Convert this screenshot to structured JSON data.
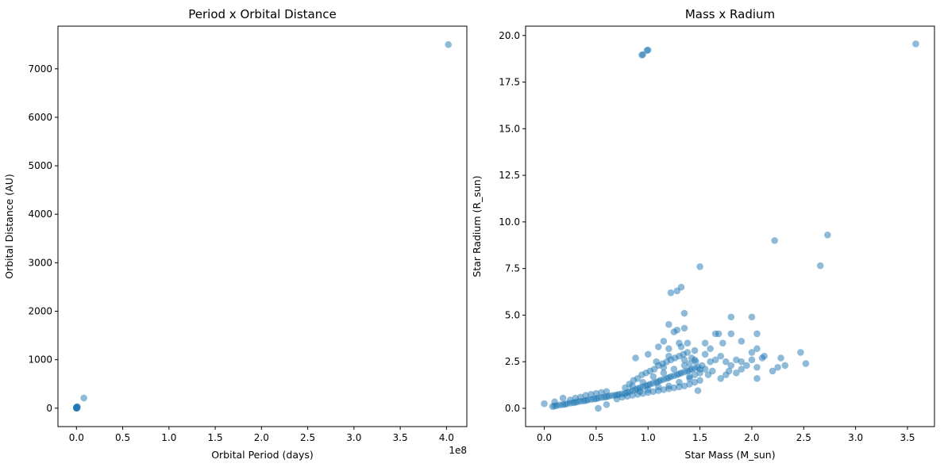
{
  "chart_data": [
    {
      "type": "scatter",
      "title": "Period x Orbital Distance",
      "xlabel": "Orbital Period (days)",
      "ylabel": "Orbital Distance (AU)",
      "x_offset_label": "1e8",
      "xlim": [
        -0.2,
        4.22
      ],
      "ylim": [
        -380,
        7880
      ],
      "xticks": [
        0.0,
        0.5,
        1.0,
        1.5,
        2.0,
        2.5,
        3.0,
        3.5,
        4.0
      ],
      "xtick_labels": [
        "0.0",
        "0.5",
        "1.0",
        "1.5",
        "2.0",
        "2.5",
        "3.0",
        "3.5",
        "4.0"
      ],
      "yticks": [
        0,
        1000,
        2000,
        3000,
        4000,
        5000,
        6000,
        7000
      ],
      "ytick_labels": [
        "0",
        "1000",
        "2000",
        "3000",
        "4000",
        "5000",
        "6000",
        "7000"
      ],
      "color": "#1f77b4",
      "alpha": 0.5,
      "grid": false,
      "points": [
        [
          0.0,
          0.0
        ],
        [
          0.002,
          2
        ],
        [
          0.004,
          5
        ],
        [
          0.006,
          10
        ],
        [
          0.0,
          15
        ],
        [
          0.003,
          20
        ],
        [
          0.008,
          30
        ],
        [
          0.001,
          3
        ],
        [
          0.005,
          8
        ],
        [
          0.0,
          12
        ],
        [
          0.007,
          25
        ],
        [
          0.08,
          210
        ],
        [
          4.02,
          7500
        ]
      ]
    },
    {
      "type": "scatter",
      "title": "Mass x Radium",
      "xlabel": "Star Mass (M_sun)",
      "ylabel": "Star Radium (R_sun)",
      "xlim": [
        -0.18,
        3.76
      ],
      "ylim": [
        -0.98,
        20.5
      ],
      "xticks": [
        0.0,
        0.5,
        1.0,
        1.5,
        2.0,
        2.5,
        3.0,
        3.5
      ],
      "xtick_labels": [
        "0.0",
        "0.5",
        "1.0",
        "1.5",
        "2.0",
        "2.5",
        "3.0",
        "3.5"
      ],
      "yticks": [
        0.0,
        2.5,
        5.0,
        7.5,
        10.0,
        12.5,
        15.0,
        17.5,
        20.0
      ],
      "ytick_labels": [
        "0.0",
        "2.5",
        "5.0",
        "7.5",
        "10.0",
        "12.5",
        "15.0",
        "17.5",
        "20.0"
      ],
      "color": "#1f77b4",
      "alpha": 0.5,
      "grid": false,
      "points": [
        [
          0.0,
          0.25
        ],
        [
          0.08,
          0.1
        ],
        [
          0.1,
          0.12
        ],
        [
          0.12,
          0.15
        ],
        [
          0.15,
          0.18
        ],
        [
          0.18,
          0.2
        ],
        [
          0.2,
          0.22
        ],
        [
          0.22,
          0.25
        ],
        [
          0.25,
          0.28
        ],
        [
          0.28,
          0.3
        ],
        [
          0.3,
          0.32
        ],
        [
          0.32,
          0.35
        ],
        [
          0.35,
          0.38
        ],
        [
          0.38,
          0.4
        ],
        [
          0.4,
          0.42
        ],
        [
          0.42,
          0.45
        ],
        [
          0.45,
          0.48
        ],
        [
          0.48,
          0.5
        ],
        [
          0.5,
          0.52
        ],
        [
          0.52,
          0.55
        ],
        [
          0.55,
          0.58
        ],
        [
          0.58,
          0.6
        ],
        [
          0.6,
          0.62
        ],
        [
          0.62,
          0.65
        ],
        [
          0.65,
          0.68
        ],
        [
          0.68,
          0.7
        ],
        [
          0.7,
          0.72
        ],
        [
          0.72,
          0.75
        ],
        [
          0.75,
          0.78
        ],
        [
          0.78,
          0.8
        ],
        [
          0.8,
          0.85
        ],
        [
          0.82,
          0.9
        ],
        [
          0.85,
          0.95
        ],
        [
          0.88,
          1.0
        ],
        [
          0.9,
          1.05
        ],
        [
          0.92,
          1.1
        ],
        [
          0.95,
          1.15
        ],
        [
          0.98,
          1.2
        ],
        [
          1.0,
          1.25
        ],
        [
          1.02,
          1.3
        ],
        [
          1.05,
          1.35
        ],
        [
          1.08,
          1.4
        ],
        [
          1.1,
          1.45
        ],
        [
          1.12,
          1.5
        ],
        [
          1.15,
          1.55
        ],
        [
          1.18,
          1.6
        ],
        [
          1.2,
          1.65
        ],
        [
          1.22,
          1.7
        ],
        [
          1.25,
          1.75
        ],
        [
          1.28,
          1.8
        ],
        [
          1.3,
          1.85
        ],
        [
          1.32,
          1.9
        ],
        [
          1.35,
          1.95
        ],
        [
          1.38,
          2.0
        ],
        [
          1.4,
          2.05
        ],
        [
          1.42,
          2.1
        ],
        [
          1.45,
          2.15
        ],
        [
          1.48,
          2.2
        ],
        [
          0.1,
          0.35
        ],
        [
          0.18,
          0.55
        ],
        [
          0.25,
          0.45
        ],
        [
          0.3,
          0.55
        ],
        [
          0.35,
          0.6
        ],
        [
          0.4,
          0.7
        ],
        [
          0.45,
          0.75
        ],
        [
          0.5,
          0.8
        ],
        [
          0.55,
          0.85
        ],
        [
          0.6,
          0.9
        ],
        [
          0.52,
          0.0
        ],
        [
          0.6,
          0.2
        ],
        [
          0.7,
          0.5
        ],
        [
          0.75,
          0.6
        ],
        [
          0.8,
          0.65
        ],
        [
          0.85,
          0.7
        ],
        [
          0.9,
          0.75
        ],
        [
          0.95,
          0.8
        ],
        [
          1.0,
          0.85
        ],
        [
          1.05,
          0.9
        ],
        [
          1.1,
          0.95
        ],
        [
          1.15,
          1.0
        ],
        [
          1.2,
          1.05
        ],
        [
          1.25,
          1.1
        ],
        [
          1.3,
          1.15
        ],
        [
          1.35,
          1.2
        ],
        [
          1.4,
          1.3
        ],
        [
          1.45,
          1.4
        ],
        [
          1.5,
          1.5
        ],
        [
          1.48,
          0.95
        ],
        [
          0.78,
          1.1
        ],
        [
          0.82,
          1.3
        ],
        [
          0.86,
          1.5
        ],
        [
          0.9,
          1.6
        ],
        [
          0.94,
          1.8
        ],
        [
          0.98,
          1.9
        ],
        [
          1.02,
          2.0
        ],
        [
          1.06,
          2.1
        ],
        [
          1.1,
          2.3
        ],
        [
          1.14,
          2.4
        ],
        [
          1.18,
          2.5
        ],
        [
          1.22,
          2.6
        ],
        [
          1.26,
          2.7
        ],
        [
          1.3,
          2.8
        ],
        [
          1.34,
          2.9
        ],
        [
          1.38,
          3.0
        ],
        [
          1.42,
          2.7
        ],
        [
          1.46,
          2.5
        ],
        [
          0.88,
          2.7
        ],
        [
          1.0,
          2.9
        ],
        [
          1.1,
          3.3
        ],
        [
          1.15,
          3.6
        ],
        [
          1.2,
          3.2
        ],
        [
          1.25,
          4.1
        ],
        [
          1.28,
          4.2
        ],
        [
          1.32,
          3.3
        ],
        [
          1.35,
          4.3
        ],
        [
          1.3,
          3.5
        ],
        [
          1.38,
          3.5
        ],
        [
          1.45,
          3.1
        ],
        [
          1.55,
          2.9
        ],
        [
          1.6,
          2.5
        ],
        [
          1.65,
          2.6
        ],
        [
          1.7,
          2.8
        ],
        [
          1.75,
          2.5
        ],
        [
          1.8,
          2.3
        ],
        [
          1.85,
          2.6
        ],
        [
          1.9,
          2.5
        ],
        [
          1.95,
          2.3
        ],
        [
          2.0,
          2.6
        ],
        [
          2.05,
          2.2
        ],
        [
          2.1,
          2.7
        ],
        [
          1.55,
          3.5
        ],
        [
          1.6,
          3.2
        ],
        [
          1.65,
          4.0
        ],
        [
          1.68,
          4.0
        ],
        [
          1.72,
          3.5
        ],
        [
          1.8,
          4.9
        ],
        [
          1.8,
          4.0
        ],
        [
          1.9,
          3.6
        ],
        [
          2.0,
          3.0
        ],
        [
          2.05,
          3.2
        ],
        [
          2.05,
          4.0
        ],
        [
          2.0,
          4.9
        ],
        [
          1.58,
          1.8
        ],
        [
          1.62,
          2.0
        ],
        [
          1.7,
          1.6
        ],
        [
          1.75,
          1.8
        ],
        [
          1.78,
          2.0
        ],
        [
          1.85,
          1.9
        ],
        [
          1.9,
          2.1
        ],
        [
          2.05,
          1.6
        ],
        [
          2.12,
          2.8
        ],
        [
          2.2,
          2.0
        ],
        [
          2.25,
          2.2
        ],
        [
          2.28,
          2.7
        ],
        [
          2.32,
          2.3
        ],
        [
          2.47,
          3.0
        ],
        [
          2.52,
          2.4
        ],
        [
          2.22,
          9.0
        ],
        [
          2.66,
          7.65
        ],
        [
          2.73,
          9.3
        ],
        [
          1.5,
          7.6
        ],
        [
          1.22,
          6.2
        ],
        [
          1.28,
          6.3
        ],
        [
          1.32,
          6.5
        ],
        [
          1.35,
          5.1
        ],
        [
          1.2,
          4.5
        ],
        [
          0.94,
          18.95
        ],
        [
          0.95,
          18.98
        ],
        [
          0.99,
          19.2
        ],
        [
          1.0,
          19.22
        ],
        [
          3.58,
          19.55
        ],
        [
          1.4,
          1.7
        ],
        [
          1.35,
          2.3
        ],
        [
          1.25,
          2.1
        ],
        [
          1.15,
          1.9
        ],
        [
          1.05,
          1.7
        ],
        [
          0.95,
          1.4
        ],
        [
          0.85,
          1.2
        ],
        [
          1.2,
          1.2
        ],
        [
          1.3,
          1.4
        ],
        [
          1.4,
          1.6
        ],
        [
          1.45,
          1.8
        ],
        [
          1.5,
          1.9
        ],
        [
          1.5,
          2.1
        ],
        [
          1.52,
          2.3
        ],
        [
          1.55,
          2.1
        ],
        [
          1.1,
          1.15
        ],
        [
          1.0,
          1.0
        ],
        [
          0.92,
          0.9
        ],
        [
          1.35,
          2.6
        ],
        [
          1.4,
          2.4
        ],
        [
          1.45,
          2.6
        ],
        [
          1.2,
          2.8
        ],
        [
          1.15,
          2.2
        ],
        [
          1.08,
          2.5
        ]
      ]
    }
  ]
}
